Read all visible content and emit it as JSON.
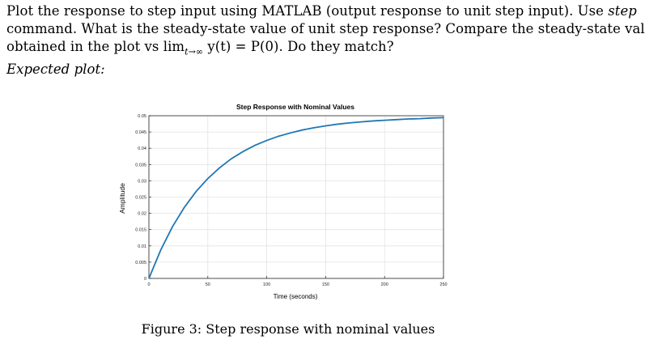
{
  "question": {
    "line1_a": "Plot the response to step input using MATLAB (output response to unit step input). Use ",
    "line1_b": "step",
    "line2": "command. What is the steady-state value of unit step response? Compare the steady-state value",
    "line3": "obtained in the plot vs lim",
    "line3_sub": "t→∞",
    "line3_b": " y(t) = P(0). Do they match?",
    "label": "Expected plot:"
  },
  "caption": "Figure 3: Step response with nominal values",
  "chart_data": {
    "type": "line",
    "title": "Step Response with Nominal Values",
    "xlabel": "Time (seconds)",
    "ylabel": "Amplitude",
    "xlim": [
      0,
      250
    ],
    "ylim": [
      0,
      0.05
    ],
    "xticks": [
      0,
      50,
      100,
      150,
      200,
      250
    ],
    "xtick_labels": [
      "0",
      "50",
      "100",
      "150",
      "200",
      "250"
    ],
    "yticks": [
      0,
      0.005,
      0.01,
      0.015,
      0.02,
      0.025,
      0.03,
      0.035,
      0.04,
      0.045,
      0.05
    ],
    "ytick_labels": [
      "0",
      "0.005",
      "0.01",
      "0.015",
      "0.02",
      "0.025",
      "0.03",
      "0.035",
      "0.04",
      "0.045",
      "0.05"
    ],
    "grid": true,
    "line_color": "#1f77b4",
    "series": [
      {
        "x": [
          0,
          10,
          20,
          30,
          40,
          50,
          60,
          70,
          80,
          90,
          100,
          110,
          120,
          130,
          140,
          150,
          160,
          170,
          180,
          190,
          200,
          210,
          220,
          230,
          240,
          250
        ],
        "y": [
          0,
          0.0087,
          0.0159,
          0.0218,
          0.0267,
          0.0307,
          0.034,
          0.0368,
          0.039,
          0.0409,
          0.0424,
          0.0437,
          0.0447,
          0.0456,
          0.0463,
          0.0469,
          0.0474,
          0.0478,
          0.0481,
          0.0484,
          0.0486,
          0.0488,
          0.049,
          0.0491,
          0.0493,
          0.0494
        ]
      }
    ]
  }
}
